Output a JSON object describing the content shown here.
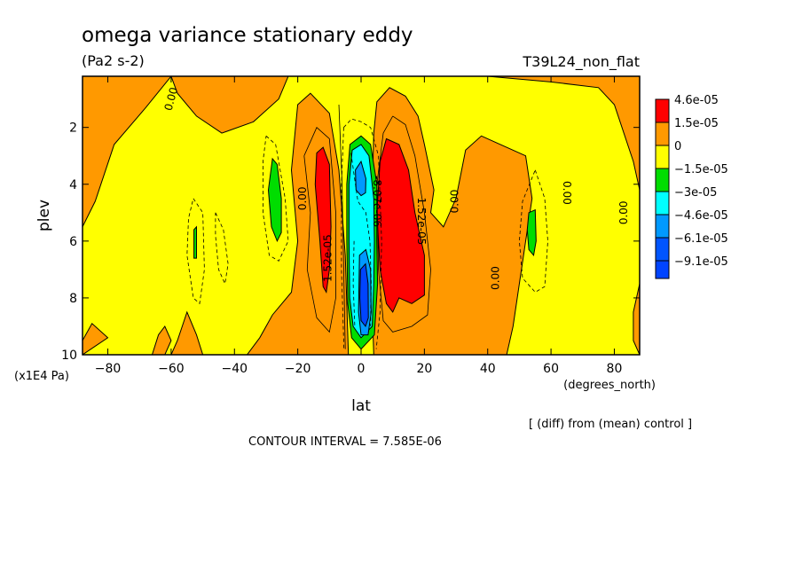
{
  "chart_data": {
    "type": "heatmap",
    "title": "omega variance stationary eddy",
    "units": "(Pa2 s-2)",
    "run_label": "T39L24_non_flat",
    "xlabel": "lat",
    "xunit": "(degrees_north)",
    "ylabel": "plev",
    "yunit": "(x1E4 Pa)",
    "xlim": [
      -88,
      88
    ],
    "ylim": [
      10,
      0.2
    ],
    "x_ticks": [
      {
        "v": -80,
        "label": "−80"
      },
      {
        "v": -60,
        "label": "−60"
      },
      {
        "v": -40,
        "label": "−40"
      },
      {
        "v": -20,
        "label": "−20"
      },
      {
        "v": 0,
        "label": "0"
      },
      {
        "v": 20,
        "label": "20"
      },
      {
        "v": 40,
        "label": "40"
      },
      {
        "v": 60,
        "label": "60"
      },
      {
        "v": 80,
        "label": "80"
      }
    ],
    "y_ticks": [
      {
        "v": 2,
        "label": "2"
      },
      {
        "v": 4,
        "label": "4"
      },
      {
        "v": 6,
        "label": "6"
      },
      {
        "v": 8,
        "label": "8"
      },
      {
        "v": 10,
        "label": "10"
      }
    ],
    "contour_interval_text": "CONTOUR INTERVAL = 7.585E-06",
    "note": "[ (diff) from (mean) control ]",
    "colorbar": [
      {
        "label": "4.6e-05",
        "color": "#ff0000"
      },
      {
        "label": "1.5e-05",
        "color": "#ff9900"
      },
      {
        "label": "0",
        "color": "#ffff00"
      },
      {
        "label": "−1.5e-05",
        "color": "#00dd00"
      },
      {
        "label": "−3e-05",
        "color": "#00ffff"
      },
      {
        "label": "−4.6e-05",
        "color": "#0099ff"
      },
      {
        "label": "−6.1e-05",
        "color": "#0055ff"
      },
      {
        "label": "−9.1e-05",
        "color": ""
      }
    ],
    "background_color": "#ffff00",
    "regions": [
      {
        "name": "orange-top-left",
        "color": "#ff9900",
        "pts": [
          [
            -88,
            0.2
          ],
          [
            -60,
            0.2
          ],
          [
            -68,
            1.3
          ],
          [
            -78,
            2.6
          ],
          [
            -84,
            4.6
          ],
          [
            -88,
            5.5
          ]
        ]
      },
      {
        "name": "orange-top-mid",
        "color": "#ff9900",
        "pts": [
          [
            -60,
            0.2
          ],
          [
            -23,
            0.2
          ],
          [
            -26,
            1.0
          ],
          [
            -34,
            1.8
          ],
          [
            -44,
            2.2
          ],
          [
            -52,
            1.6
          ],
          [
            -58,
            0.8
          ]
        ]
      },
      {
        "name": "orange-top-right",
        "color": "#ff9900",
        "pts": [
          [
            40,
            0.2
          ],
          [
            88,
            0.2
          ],
          [
            88,
            4.2
          ],
          [
            86,
            3.2
          ],
          [
            80,
            1.2
          ],
          [
            75,
            0.6
          ],
          [
            60,
            0.4
          ]
        ]
      },
      {
        "name": "orange-bottom-left",
        "color": "#ff9900",
        "pts": [
          [
            -88,
            9.5
          ],
          [
            -85,
            8.9
          ],
          [
            -80,
            9.4
          ],
          [
            -88,
            10
          ]
        ]
      },
      {
        "name": "orange-bottom-2",
        "color": "#ff9900",
        "pts": [
          [
            -58,
            9.5
          ],
          [
            -55,
            8.5
          ],
          [
            -52,
            9.3
          ],
          [
            -50,
            10
          ],
          [
            -60,
            10
          ]
        ]
      },
      {
        "name": "orange-bottom-3",
        "color": "#ff9900",
        "pts": [
          [
            -64,
            9.3
          ],
          [
            -62,
            9.0
          ],
          [
            -60,
            9.5
          ],
          [
            -62,
            10
          ],
          [
            -66,
            10
          ]
        ]
      },
      {
        "name": "orange-right-edge",
        "color": "#ff9900",
        "pts": [
          [
            88,
            7.5
          ],
          [
            86,
            8.5
          ],
          [
            86,
            9.5
          ],
          [
            88,
            10
          ]
        ]
      },
      {
        "name": "orange-south-plume",
        "color": "#ff9900",
        "pts": [
          [
            -20,
            1.2
          ],
          [
            -16,
            0.8
          ],
          [
            -10,
            1.5
          ],
          [
            -7,
            3.5
          ],
          [
            -5,
            6.5
          ],
          [
            -4,
            10
          ],
          [
            -36,
            10
          ],
          [
            -32,
            9.4
          ],
          [
            -28,
            8.6
          ],
          [
            -22,
            7.8
          ],
          [
            -20,
            6.0
          ],
          [
            -22,
            3.5
          ]
        ]
      },
      {
        "name": "orange-north-plume",
        "color": "#ff9900",
        "pts": [
          [
            4,
            2.2
          ],
          [
            5,
            1.1
          ],
          [
            9,
            0.6
          ],
          [
            14,
            0.9
          ],
          [
            18,
            1.6
          ],
          [
            20,
            2.6
          ],
          [
            23,
            4.2
          ],
          [
            22,
            5.0
          ],
          [
            26,
            5.5
          ],
          [
            30,
            4.5
          ],
          [
            33,
            2.8
          ],
          [
            38,
            2.3
          ],
          [
            44,
            2.6
          ],
          [
            52,
            3.0
          ],
          [
            54,
            4.5
          ],
          [
            52,
            6.0
          ],
          [
            50,
            7.5
          ],
          [
            48,
            9.0
          ],
          [
            46,
            10
          ],
          [
            4,
            10
          ],
          [
            3,
            6.5
          ]
        ]
      },
      {
        "name": "red-south",
        "color": "#ff0000",
        "pts": [
          [
            -14,
            2.9
          ],
          [
            -12,
            2.7
          ],
          [
            -10,
            3.3
          ],
          [
            -9.5,
            5.5
          ],
          [
            -10,
            7.0
          ],
          [
            -11,
            7.8
          ],
          [
            -12,
            7.6
          ],
          [
            -13,
            6.0
          ],
          [
            -14.5,
            4.0
          ]
        ]
      },
      {
        "name": "red-north",
        "color": "#ff0000",
        "pts": [
          [
            6,
            3.2
          ],
          [
            8,
            2.4
          ],
          [
            12,
            2.6
          ],
          [
            15,
            3.5
          ],
          [
            17,
            5.0
          ],
          [
            20,
            6.5
          ],
          [
            20,
            7.9
          ],
          [
            16,
            8.2
          ],
          [
            12,
            8.0
          ],
          [
            10,
            8.5
          ],
          [
            8,
            8.2
          ],
          [
            6,
            7.0
          ],
          [
            5,
            5.0
          ]
        ]
      },
      {
        "name": "green-eq",
        "color": "#00dd00",
        "pts": [
          [
            -3.5,
            2.6
          ],
          [
            0,
            2.3
          ],
          [
            3,
            2.6
          ],
          [
            5,
            4.0
          ],
          [
            5,
            6.0
          ],
          [
            5.2,
            7.5
          ],
          [
            4.2,
            9.3
          ],
          [
            0,
            9.8
          ],
          [
            -3,
            9.4
          ],
          [
            -4.2,
            8.2
          ],
          [
            -4.5,
            6.0
          ],
          [
            -4.5,
            4.0
          ]
        ]
      },
      {
        "name": "cyan-eq",
        "color": "#00ffff",
        "pts": [
          [
            -2.8,
            2.8
          ],
          [
            0,
            2.6
          ],
          [
            2.5,
            3.0
          ],
          [
            4.0,
            4.5
          ],
          [
            4.2,
            6.0
          ],
          [
            4.0,
            7.5
          ],
          [
            3.5,
            9.0
          ],
          [
            0,
            9.4
          ],
          [
            -2.5,
            9.0
          ],
          [
            -3.6,
            8.0
          ],
          [
            -3.8,
            6.0
          ],
          [
            -3.8,
            4.0
          ]
        ]
      },
      {
        "name": "lightblue-upper",
        "color": "#0099ff",
        "pts": [
          [
            -1.8,
            3.5
          ],
          [
            0,
            3.2
          ],
          [
            1.5,
            3.8
          ],
          [
            1.4,
            4.3
          ],
          [
            0,
            4.4
          ],
          [
            -1.6,
            4.2
          ]
        ]
      },
      {
        "name": "lightblue-lower",
        "color": "#0099ff",
        "pts": [
          [
            -0.5,
            6.5
          ],
          [
            1.5,
            6.3
          ],
          [
            3.0,
            7.0
          ],
          [
            3.2,
            8.5
          ],
          [
            2.2,
            9.3
          ],
          [
            0,
            9.3
          ],
          [
            -0.8,
            8.5
          ]
        ]
      },
      {
        "name": "blue-core",
        "color": "#0044ff",
        "pts": [
          [
            -0.2,
            7.0
          ],
          [
            1.4,
            6.8
          ],
          [
            2.2,
            7.5
          ],
          [
            2.3,
            8.7
          ],
          [
            1.4,
            9.0
          ],
          [
            0,
            8.8
          ],
          [
            -0.4,
            8.0
          ]
        ]
      },
      {
        "name": "green-south",
        "color": "#00dd00",
        "pts": [
          [
            -28,
            3.1
          ],
          [
            -26.5,
            3.3
          ],
          [
            -25.2,
            4.5
          ],
          [
            -25.2,
            5.7
          ],
          [
            -26.5,
            6.0
          ],
          [
            -28.3,
            5.5
          ],
          [
            -29.3,
            4.2
          ]
        ]
      },
      {
        "name": "green-north",
        "color": "#00dd00",
        "pts": [
          [
            53,
            5.0
          ],
          [
            55,
            4.9
          ],
          [
            55.3,
            6.0
          ],
          [
            54.5,
            6.5
          ],
          [
            53,
            6.3
          ],
          [
            52.5,
            5.6
          ]
        ]
      },
      {
        "name": "green-small",
        "color": "#00dd00",
        "pts": [
          [
            -52.8,
            5.6
          ],
          [
            -52,
            5.5
          ],
          [
            -52,
            6.6
          ],
          [
            -52.8,
            6.6
          ]
        ]
      }
    ],
    "contour_lines": [
      {
        "style": "solid",
        "pts": [
          [
            -7,
            1.2
          ],
          [
            -6,
            4.0
          ],
          [
            -5.5,
            7.0
          ],
          [
            -5,
            9.8
          ]
        ]
      },
      {
        "style": "solid",
        "pts": [
          [
            -18,
            3.0
          ],
          [
            -16,
            5.0
          ],
          [
            -17,
            7.0
          ],
          [
            -14,
            8.7
          ],
          [
            -10,
            9.2
          ],
          [
            -8,
            8.0
          ],
          [
            -8,
            5.0
          ],
          [
            -10,
            2.4
          ],
          [
            -14,
            2.0
          ],
          [
            -18,
            3.0
          ]
        ]
      },
      {
        "style": "solid",
        "pts": [
          [
            10,
            1.6
          ],
          [
            14,
            1.9
          ],
          [
            17,
            3.0
          ],
          [
            20,
            5.0
          ],
          [
            22,
            7.0
          ],
          [
            21,
            8.6
          ],
          [
            16,
            9.0
          ],
          [
            10,
            9.2
          ],
          [
            7,
            8.8
          ],
          [
            5.5,
            7.0
          ],
          [
            5,
            4.0
          ],
          [
            7,
            2.2
          ],
          [
            10,
            1.6
          ]
        ]
      },
      {
        "style": "dashed",
        "pts": [
          [
            -30,
            2.3
          ],
          [
            -27,
            2.6
          ],
          [
            -24,
            4.5
          ],
          [
            -23,
            6.0
          ],
          [
            -26,
            6.7
          ],
          [
            -29,
            6.5
          ],
          [
            -31,
            5.0
          ],
          [
            -31,
            3.2
          ],
          [
            -30,
            2.3
          ]
        ]
      },
      {
        "style": "dashed",
        "pts": [
          [
            -53,
            4.5
          ],
          [
            -50,
            5.0
          ],
          [
            -49.5,
            7.0
          ],
          [
            -51,
            8.2
          ],
          [
            -53,
            8.0
          ],
          [
            -55,
            6.5
          ],
          [
            -54.5,
            5.2
          ],
          [
            -53,
            4.5
          ]
        ]
      },
      {
        "style": "dashed",
        "pts": [
          [
            -46,
            5.0
          ],
          [
            -43.5,
            5.6
          ],
          [
            -42,
            6.8
          ],
          [
            -43,
            7.5
          ],
          [
            -45,
            7.0
          ],
          [
            -46,
            5.8
          ],
          [
            -46,
            5.0
          ]
        ]
      },
      {
        "style": "dashed",
        "pts": [
          [
            55,
            3.5
          ],
          [
            58,
            4.5
          ],
          [
            59,
            6.0
          ],
          [
            58,
            7.6
          ],
          [
            55,
            7.8
          ],
          [
            51,
            7.3
          ],
          [
            50,
            6.0
          ],
          [
            51,
            4.6
          ],
          [
            55,
            3.5
          ]
        ]
      },
      {
        "style": "dashed",
        "pts": [
          [
            -5.5,
            2.0
          ],
          [
            -3,
            1.7
          ],
          [
            0,
            1.8
          ],
          [
            3,
            2.0
          ],
          [
            5.5,
            3.0
          ],
          [
            6.5,
            6.0
          ],
          [
            6.0,
            8.5
          ],
          [
            4.8,
            9.8
          ]
        ]
      },
      {
        "style": "dashed",
        "pts": [
          [
            -5.5,
            2.0
          ],
          [
            -6.2,
            4.0
          ],
          [
            -6.2,
            7.0
          ],
          [
            -5.4,
            9.8
          ]
        ]
      },
      {
        "style": "dashed",
        "pts": [
          [
            -3.2,
            2.9
          ],
          [
            -1,
            4.6
          ],
          [
            1.5,
            5.0
          ],
          [
            2.8,
            6.0
          ],
          [
            3.2,
            7.5
          ],
          [
            3.0,
            9.0
          ]
        ]
      },
      {
        "style": "dashed",
        "pts": [
          [
            -2.2,
            6.0
          ],
          [
            -2.5,
            7.5
          ],
          [
            -2.0,
            9.0
          ]
        ]
      }
    ],
    "contour_labels": [
      {
        "lat": -60,
        "plev": 1.0,
        "angle": -75,
        "text": "0.00"
      },
      {
        "lat": -18.5,
        "plev": 4.5,
        "angle": -90,
        "text": "0.00"
      },
      {
        "lat": -10.5,
        "plev": 6.6,
        "angle": -90,
        "text": "1.52e-05"
      },
      {
        "lat": 5.0,
        "plev": 4.6,
        "angle": 90,
        "text": "-8.07e-06"
      },
      {
        "lat": 19.0,
        "plev": 5.3,
        "angle": 90,
        "text": "1.52e-05"
      },
      {
        "lat": 29.5,
        "plev": 4.6,
        "angle": -90,
        "text": "0.00"
      },
      {
        "lat": 42.5,
        "plev": 7.3,
        "angle": -90,
        "text": "0.00"
      },
      {
        "lat": 65,
        "plev": 4.3,
        "angle": 90,
        "text": "0.00"
      },
      {
        "lat": 83,
        "plev": 5.0,
        "angle": -90,
        "text": "0.00"
      }
    ]
  }
}
